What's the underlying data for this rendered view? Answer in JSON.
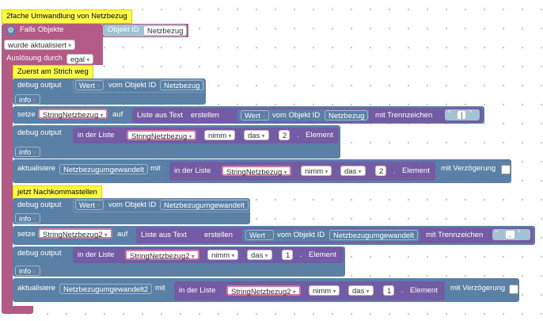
{
  "comments": {
    "title": "2fache Umwandlung von Netzbezug",
    "first": "Zuerst am Strich weg",
    "second": "jetzt Nachkommastellen"
  },
  "trigger": {
    "falls_objekte": "Falls Objekte",
    "objekt_id_label": "Objekt ID",
    "objekt_id_value": "Netzbezug",
    "wurde_aktualisiert": "wurde aktualisiert",
    "ausloesung_label": "Auslösung durch",
    "ausloesung_value": "egal"
  },
  "common": {
    "debug_output": "debug output",
    "wert": "Wert",
    "vom_objekt_id": "vom Objekt ID",
    "info": "info",
    "setze": "setze",
    "auf": "auf",
    "liste_aus_text": "Liste aus Text",
    "erstellen": "erstellen",
    "mit_trennzeichen": "mit Trennzeichen",
    "in_der_liste": "in der Liste",
    "nimm": "nimm",
    "das": "das",
    "dot": ".",
    "element": "Element",
    "aktualisiere": "aktualisiere",
    "mit": "mit",
    "mit_verzoegerung": "mit Verzögerung",
    "quote_open": "“",
    "quote_close": "”"
  },
  "blocks": {
    "debug1_obj": "Netzbezug",
    "set1_var": "StringNetzbezug",
    "set1_obj": "Netzbezug",
    "set1_sep": "|",
    "debug2_list": "StringNetzbezug",
    "debug2_index": "2",
    "update1_target": "Netzbezugumgewandelt",
    "update1_list": "StringNetzbezug",
    "update1_index": "2",
    "debug3_obj": "Netzbezugumgewandelt",
    "set2_var": "StringNetzbezug2",
    "set2_obj": "Netzbezugumgewandelt",
    "set2_sep": ".",
    "debug4_list": "StringNetzbezug2",
    "debug4_index": "1",
    "update2_target": "Netzbezugumgewandelt2",
    "update2_list": "StringNetzbezug2",
    "update2_index": "1"
  }
}
